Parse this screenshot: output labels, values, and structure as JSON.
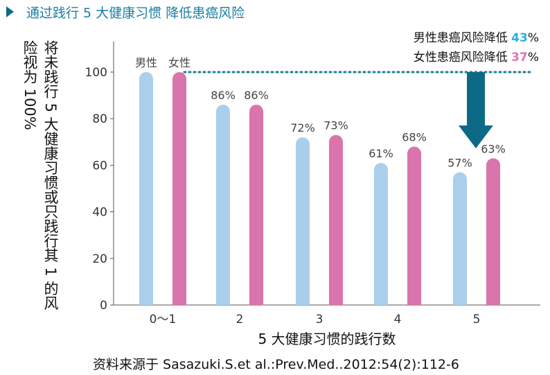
{
  "header": {
    "title": "通过践行 5 大健康习惯  降低患癌风险"
  },
  "notes": {
    "male_prefix": "男性患癌风险降低",
    "male_value": "43",
    "female_prefix": "女性患癌风险降低",
    "female_value": "37",
    "pct_sign": "%"
  },
  "source": "资料来源于  Sasazuki.S.et al.:Prev.Med..2012:54(2):112-6",
  "colors": {
    "male": "#aacfed",
    "female": "#d974ac",
    "male_highlight": "#29b1e0",
    "female_highlight": "#e572b6",
    "arrow": "#0d6a87",
    "dotted_line": "#1f7f95",
    "title": "#1a7ea3"
  },
  "chart_data": {
    "type": "bar",
    "title": "",
    "xlabel": "5 大健康习惯的践行数",
    "ylabel": "将未践行 5 大健康习惯或只践行其 1 的风险视为 100%",
    "categories": [
      "0〜1",
      "2",
      "3",
      "4",
      "5"
    ],
    "legend": [
      "男性",
      "女性"
    ],
    "series": [
      {
        "name": "男性",
        "values": [
          100,
          86,
          72,
          61,
          57
        ],
        "labels": [
          "",
          "86%",
          "72%",
          "61%",
          "57%"
        ]
      },
      {
        "name": "女性",
        "values": [
          100,
          86,
          73,
          68,
          63
        ],
        "labels": [
          "",
          "86%",
          "73%",
          "68%",
          "63%"
        ]
      }
    ],
    "y_ticks": [
      "0",
      "20",
      "40",
      "60",
      "80",
      "100"
    ],
    "ylim": [
      0,
      110
    ],
    "reference_line": 100,
    "grid": false
  }
}
